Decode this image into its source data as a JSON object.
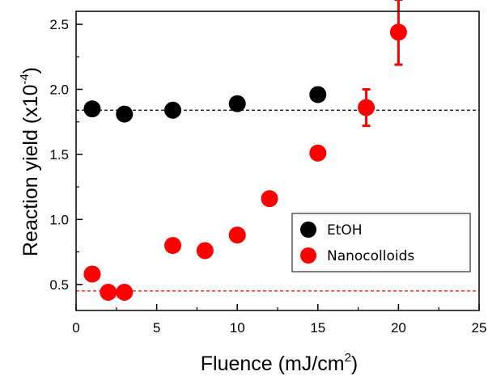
{
  "chart_data": {
    "type": "scatter",
    "xlabel": "Fluence (mJ/cm",
    "xlabel_sup": "2",
    "xlabel_end": ")",
    "ylabel": "Reaction yield (x10",
    "ylabel_sup": "-4",
    "ylabel_end": ")",
    "xlim": [
      0,
      25
    ],
    "ylim": [
      0.3,
      2.6
    ],
    "x_ticks": [
      0,
      5,
      10,
      15,
      20,
      25
    ],
    "x_tick_labels": [
      "0",
      "5",
      "10",
      "15",
      "20",
      "25"
    ],
    "y_ticks": [
      0.5,
      1.0,
      1.5,
      2.0,
      2.5
    ],
    "y_tick_labels": [
      "0.5",
      "1.0",
      "1.5",
      "2.0",
      "2.5"
    ],
    "grid": false,
    "legend_position": "lower-right",
    "series": [
      {
        "name": "EtOH",
        "color": "#000000",
        "x": [
          1,
          3,
          6,
          10,
          15
        ],
        "y": [
          1.85,
          1.81,
          1.84,
          1.89,
          1.96
        ],
        "reference_line": 1.84
      },
      {
        "name": "Nanocolloids",
        "color": "#ff0000",
        "x": [
          1,
          2,
          3,
          6,
          8,
          10,
          12,
          15,
          18,
          20
        ],
        "y": [
          0.58,
          0.44,
          0.44,
          0.8,
          0.76,
          0.88,
          1.16,
          1.51,
          1.86,
          2.44
        ],
        "error": [
          0,
          0,
          0,
          0,
          0,
          0,
          0,
          0,
          0.14,
          0.25
        ],
        "reference_line": 0.45
      }
    ]
  }
}
